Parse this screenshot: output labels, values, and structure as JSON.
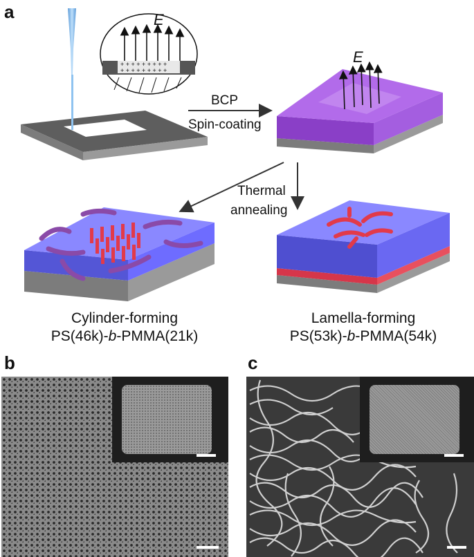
{
  "panels": {
    "a": {
      "letter": "a",
      "field_label": "E",
      "field_label_2": "E",
      "arrow1_line1": "BCP",
      "arrow1_line2": "Spin-coating",
      "arrow2_line1": "Thermal",
      "arrow2_line2": "annealing",
      "left_caption_line1": "Cylinder-forming",
      "left_caption_line2_parts": [
        "PS(46k)-",
        "b",
        "-PMMA(21k)"
      ],
      "right_caption_line1": "Lamella-forming",
      "right_caption_line2_parts": [
        "PS(53k)-",
        "b",
        "-PMMA(54k)"
      ],
      "colors": {
        "substrate_top": "#5e5e5e",
        "substrate_side": "#8a8a8a",
        "purple": "#9b4fd6",
        "blue": "#6e6cff",
        "red": "#e23a4a",
        "beam": "#8fc3f0"
      }
    },
    "b": {
      "letter": "b"
    },
    "c": {
      "letter": "c"
    }
  }
}
